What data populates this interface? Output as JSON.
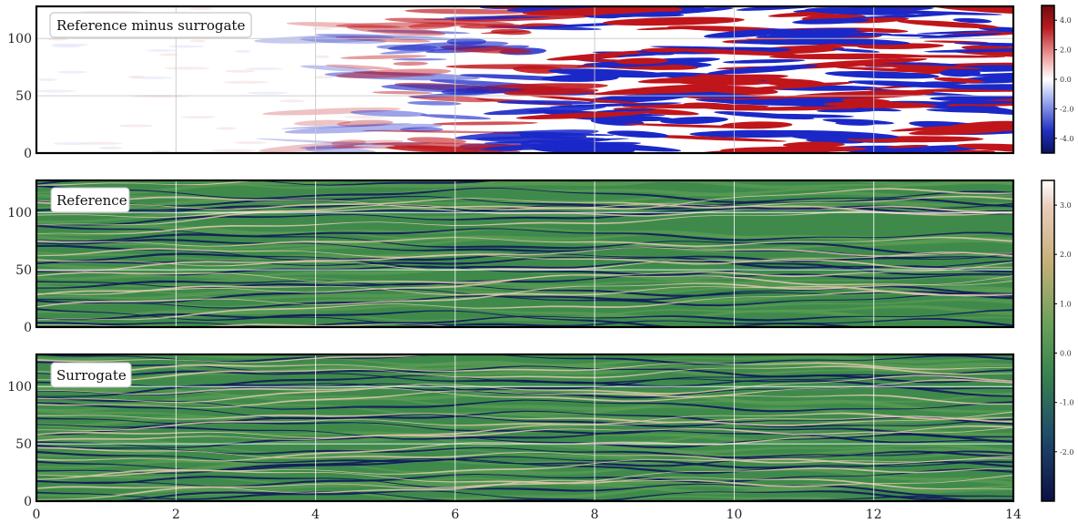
{
  "chart_data": {
    "type": "heatmap",
    "panels": [
      {
        "name": "Reference minus surrogate",
        "label": "Reference minus surrogate",
        "colormap": "diverging blue-white-red",
        "colorbar_ticks": [
          "4.0",
          "2.0",
          "0.0",
          "-2.0",
          "-4.0"
        ],
        "colorbar_range": [
          -5,
          5
        ],
        "description_values": "difference near 0 for t < 4, growing to about ±5 for t > 6"
      },
      {
        "name": "Reference",
        "label": "Reference",
        "colormap": "navy-green-beige",
        "colorbar_ticks": [
          "3.0",
          "2.0",
          "1.0",
          "0.0",
          "-1.0",
          "-2.0"
        ],
        "colorbar_range": [
          -3,
          3.5
        ]
      },
      {
        "name": "Surrogate",
        "label": "Surrogate",
        "colormap": "navy-green-beige",
        "colorbar_range": [
          -3,
          3.5
        ]
      }
    ],
    "x_ticks": [
      "0",
      "2",
      "4",
      "6",
      "8",
      "10",
      "12",
      "14"
    ],
    "xlim": [
      0,
      14
    ],
    "y_ticks": [
      "0",
      "50",
      "100"
    ],
    "ylim": [
      0,
      128
    ],
    "grid": true,
    "colors": {
      "diverging_low": "#0b1a8c",
      "diverging_mid": "#ffffff",
      "diverging_high": "#a80d12",
      "field_low": "#0f1a5c",
      "field_mid": "#3f8a4b",
      "field_high": "#e6c8b0"
    }
  }
}
